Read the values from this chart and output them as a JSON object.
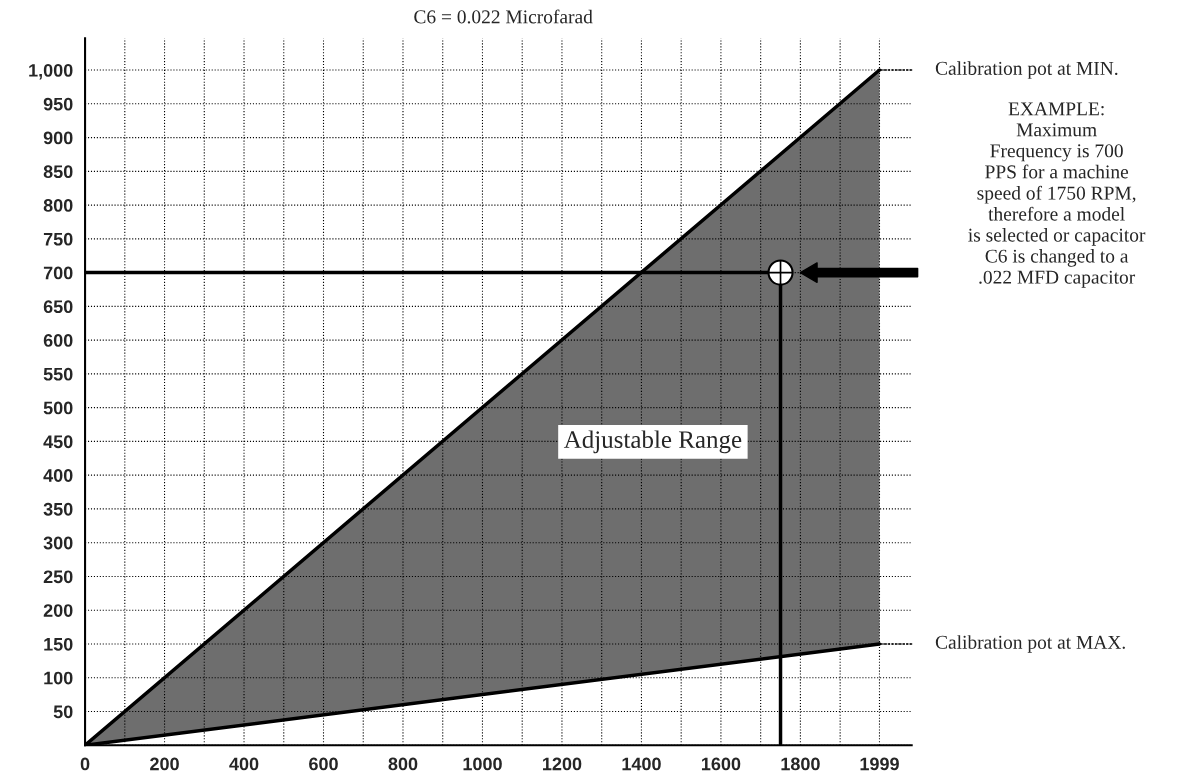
{
  "chart_data": {
    "type": "line",
    "title": "C6 = 0.022 Microfarad",
    "series": [
      {
        "type": "line",
        "x": [
          0,
          1999
        ],
        "values": [
          0,
          1000
        ],
        "lower": [
          0,
          150
        ],
        "upper": [
          0,
          1000
        ],
        "color": "#000000"
      },
      {
        "type": "line",
        "x": [
          0,
          1999
        ],
        "values": [
          0,
          150
        ],
        "color": "#000000"
      },
      {
        "x": [
          0,
          1750,
          1750
        ],
        "values": [
          700,
          700,
          0
        ],
        "color": "#000000"
      },
      {
        "type": "scatter",
        "x": [
          1750
        ],
        "values": [
          700
        ],
        "color": "#ffffff",
        "marker": "circle"
      }
    ],
    "xlim": [
      0,
      2080
    ],
    "ylim": [
      0,
      1047
    ],
    "xticks": [
      0,
      {
        "value": 100,
        "label": null
      },
      200,
      {
        "value": 300,
        "label": null
      },
      400,
      {
        "value": 500,
        "label": null
      },
      600,
      {
        "value": 700,
        "label": null
      },
      800,
      {
        "value": 900,
        "label": null
      },
      1000,
      {
        "value": 1100,
        "label": null
      },
      1200,
      {
        "value": 1300,
        "label": null
      },
      1400,
      {
        "value": 1500,
        "label": null
      },
      1600,
      {
        "value": 1700,
        "label": null
      },
      1800,
      {
        "value": 1900,
        "label": null
      },
      1999
    ],
    "yticks": [
      {
        "value": 0,
        "label": null
      },
      50,
      100,
      150,
      200,
      250,
      300,
      350,
      400,
      450,
      500,
      550,
      600,
      650,
      700,
      750,
      800,
      850,
      900,
      950,
      {
        "value": 1000,
        "label": "1,000"
      }
    ],
    "grid": true,
    "annotations": [
      {
        "text": "Calibration pot at MIN.",
        "x": 1999,
        "y": 1000
      },
      {
        "text": "Calibration pot at MAX.",
        "x": 1999,
        "y": 150
      },
      "Adjustable Range",
      "EXAMPLE:\nMaximum\nFrequency is 700\nPPS for a machine\nspeed of 1750 RPM,\ntherefore a model\nis selected or capacitor\nC6 is changed to a\n.022 MFD capacitor"
    ]
  }
}
